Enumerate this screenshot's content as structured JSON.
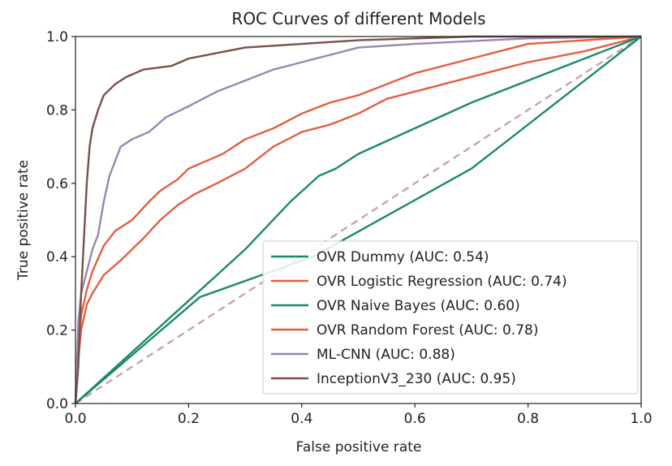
{
  "chart_data": {
    "type": "line",
    "title": "ROC Curves of different Models",
    "xlabel": "False positive rate",
    "ylabel": "True positive rate",
    "xlim": [
      0.0,
      1.0
    ],
    "ylim": [
      0.0,
      1.0
    ],
    "xticks": [
      "0.0",
      "0.2",
      "0.4",
      "0.6",
      "0.8",
      "1.0"
    ],
    "yticks": [
      "0.0",
      "0.2",
      "0.4",
      "0.6",
      "0.8",
      "1.0"
    ],
    "grid": false,
    "legend_position": "lower-right",
    "series": [
      {
        "name": "OVR Dummy (AUC: 0.54)",
        "color": "#1b8a6b",
        "style": "solid",
        "points": [
          [
            0.0,
            0.0
          ],
          [
            0.22,
            0.29
          ],
          [
            0.42,
            0.4
          ],
          [
            0.7,
            0.64
          ],
          [
            1.0,
            1.0
          ]
        ]
      },
      {
        "name": "OVR Logistic Regression (AUC: 0.74)",
        "color": "#e3603f",
        "style": "solid",
        "points": [
          [
            0.0,
            0.0
          ],
          [
            0.005,
            0.12
          ],
          [
            0.01,
            0.2
          ],
          [
            0.02,
            0.27
          ],
          [
            0.03,
            0.3
          ],
          [
            0.05,
            0.35
          ],
          [
            0.08,
            0.39
          ],
          [
            0.1,
            0.42
          ],
          [
            0.12,
            0.45
          ],
          [
            0.15,
            0.5
          ],
          [
            0.18,
            0.54
          ],
          [
            0.21,
            0.57
          ],
          [
            0.25,
            0.6
          ],
          [
            0.3,
            0.64
          ],
          [
            0.35,
            0.7
          ],
          [
            0.4,
            0.74
          ],
          [
            0.45,
            0.76
          ],
          [
            0.5,
            0.79
          ],
          [
            0.55,
            0.83
          ],
          [
            0.6,
            0.85
          ],
          [
            0.7,
            0.89
          ],
          [
            0.8,
            0.93
          ],
          [
            0.9,
            0.96
          ],
          [
            1.0,
            1.0
          ]
        ]
      },
      {
        "name": "OVR Naive Bayes (AUC: 0.60)",
        "color": "#1b8a6b",
        "style": "solid",
        "points": [
          [
            0.0,
            0.0
          ],
          [
            0.1,
            0.14
          ],
          [
            0.2,
            0.28
          ],
          [
            0.3,
            0.42
          ],
          [
            0.38,
            0.55
          ],
          [
            0.43,
            0.62
          ],
          [
            0.46,
            0.64
          ],
          [
            0.5,
            0.68
          ],
          [
            0.6,
            0.75
          ],
          [
            0.7,
            0.82
          ],
          [
            0.8,
            0.88
          ],
          [
            0.9,
            0.94
          ],
          [
            1.0,
            1.0
          ]
        ]
      },
      {
        "name": "OVR Random Forest (AUC: 0.78)",
        "color": "#e3603f",
        "style": "solid",
        "points": [
          [
            0.0,
            0.0
          ],
          [
            0.005,
            0.16
          ],
          [
            0.01,
            0.24
          ],
          [
            0.02,
            0.31
          ],
          [
            0.03,
            0.36
          ],
          [
            0.05,
            0.43
          ],
          [
            0.07,
            0.47
          ],
          [
            0.1,
            0.5
          ],
          [
            0.13,
            0.55
          ],
          [
            0.15,
            0.58
          ],
          [
            0.18,
            0.61
          ],
          [
            0.2,
            0.64
          ],
          [
            0.23,
            0.66
          ],
          [
            0.26,
            0.68
          ],
          [
            0.3,
            0.72
          ],
          [
            0.35,
            0.75
          ],
          [
            0.4,
            0.79
          ],
          [
            0.45,
            0.82
          ],
          [
            0.5,
            0.84
          ],
          [
            0.55,
            0.87
          ],
          [
            0.6,
            0.9
          ],
          [
            0.65,
            0.92
          ],
          [
            0.7,
            0.94
          ],
          [
            0.75,
            0.96
          ],
          [
            0.8,
            0.98
          ],
          [
            0.9,
            0.99
          ],
          [
            1.0,
            1.0
          ]
        ]
      },
      {
        "name": "ML-CNN (AUC: 0.88)",
        "color": "#9a86b2",
        "style": "solid",
        "points": [
          [
            0.0,
            0.0
          ],
          [
            0.005,
            0.22
          ],
          [
            0.01,
            0.3
          ],
          [
            0.02,
            0.36
          ],
          [
            0.03,
            0.42
          ],
          [
            0.04,
            0.46
          ],
          [
            0.05,
            0.55
          ],
          [
            0.06,
            0.62
          ],
          [
            0.07,
            0.66
          ],
          [
            0.08,
            0.7
          ],
          [
            0.1,
            0.72
          ],
          [
            0.13,
            0.74
          ],
          [
            0.16,
            0.78
          ],
          [
            0.2,
            0.81
          ],
          [
            0.25,
            0.85
          ],
          [
            0.3,
            0.88
          ],
          [
            0.35,
            0.91
          ],
          [
            0.4,
            0.93
          ],
          [
            0.45,
            0.95
          ],
          [
            0.5,
            0.97
          ],
          [
            0.6,
            0.98
          ],
          [
            0.8,
            0.995
          ],
          [
            1.0,
            1.0
          ]
        ]
      },
      {
        "name": "InceptionV3_230 (AUC: 0.95)",
        "color": "#7b4f4a",
        "style": "solid",
        "points": [
          [
            0.0,
            0.0
          ],
          [
            0.005,
            0.1
          ],
          [
            0.01,
            0.3
          ],
          [
            0.015,
            0.45
          ],
          [
            0.02,
            0.6
          ],
          [
            0.025,
            0.7
          ],
          [
            0.03,
            0.75
          ],
          [
            0.04,
            0.8
          ],
          [
            0.05,
            0.84
          ],
          [
            0.07,
            0.87
          ],
          [
            0.09,
            0.89
          ],
          [
            0.12,
            0.91
          ],
          [
            0.17,
            0.92
          ],
          [
            0.2,
            0.94
          ],
          [
            0.25,
            0.955
          ],
          [
            0.3,
            0.97
          ],
          [
            0.4,
            0.98
          ],
          [
            0.5,
            0.99
          ],
          [
            0.7,
            1.0
          ],
          [
            1.0,
            1.0
          ]
        ]
      }
    ],
    "reference_line": {
      "color": "#c9a3a8",
      "style": "dashed",
      "points": [
        [
          0.0,
          0.0
        ],
        [
          1.0,
          1.0
        ]
      ]
    }
  }
}
